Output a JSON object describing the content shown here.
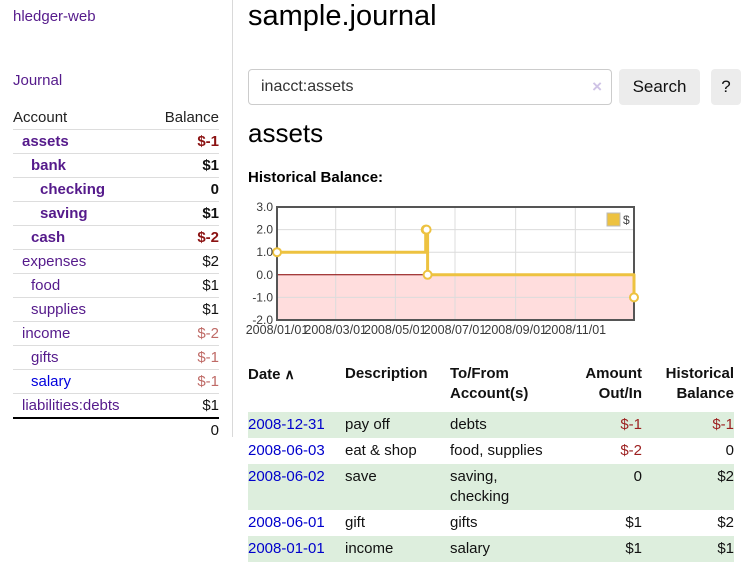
{
  "brand": {
    "label": "hledger-web"
  },
  "nav": {
    "journal_label": "Journal"
  },
  "sidebar": {
    "accounts": {
      "headers": {
        "account": "Account",
        "balance": "Balance"
      },
      "rows": [
        {
          "label": "assets",
          "indent": 1,
          "bold": true,
          "balance": "$-1"
        },
        {
          "label": "bank",
          "indent": 2,
          "bold": true,
          "balance": "$1"
        },
        {
          "label": "checking",
          "indent": 3,
          "bold": true,
          "balance": "0"
        },
        {
          "label": "saving",
          "indent": 3,
          "bold": true,
          "balance": "$1"
        },
        {
          "label": "cash",
          "indent": 2,
          "bold": true,
          "balance": "$-2"
        },
        {
          "label": "expenses",
          "indent": 1,
          "bold": false,
          "balance": "$2"
        },
        {
          "label": "food",
          "indent": 2,
          "bold": false,
          "balance": "$1"
        },
        {
          "label": "supplies",
          "indent": 2,
          "bold": false,
          "balance": "$1"
        },
        {
          "label": "income",
          "indent": 1,
          "bold": false,
          "balance": "$-2"
        },
        {
          "label": "gifts",
          "indent": 2,
          "bold": false,
          "balance": "$-1"
        },
        {
          "label": "salary",
          "indent": 2,
          "bold": false,
          "balance": "$-1",
          "link_style": "blue"
        },
        {
          "label": "liabilities:debts",
          "indent": 1,
          "bold": false,
          "balance": "$1"
        }
      ],
      "total": "0"
    }
  },
  "header": {
    "title": "sample.journal"
  },
  "search": {
    "value": "inacct:assets",
    "clear_icon": "×",
    "search_label": "Search",
    "help_label": "?"
  },
  "page": {
    "account_title": "assets",
    "chart_heading": "Historical Balance:"
  },
  "chart_data": {
    "type": "line",
    "title": "Historical Balance",
    "x_start": "2008-01-01",
    "x_end": "2008-12-31",
    "ylim": [
      -2,
      3
    ],
    "y_ticks": [
      "3.0",
      "2.0",
      "1.0",
      "0.0",
      "-1.0",
      "-2.0"
    ],
    "x_ticks": [
      "2008/01/01",
      "2008/03/01",
      "2008/05/01",
      "2008/07/01",
      "2008/09/01",
      "2008/11/01"
    ],
    "series": [
      {
        "name": "$",
        "color": "#edc240",
        "steps": true,
        "points": [
          [
            "2008-01-01",
            1
          ],
          [
            "2008-06-01",
            2
          ],
          [
            "2008-06-02",
            2
          ],
          [
            "2008-06-03",
            0
          ],
          [
            "2008-12-31",
            -1
          ]
        ]
      }
    ],
    "negative_region_color": "#ffdddd",
    "zero_line_color": "#8b0000",
    "grid": true,
    "legend_position": "top-right"
  },
  "register": {
    "headers": [
      "Date",
      "Description",
      "To/From Account(s)",
      "Amount Out/In",
      "Historical Balance"
    ],
    "sort_indicator": "∧",
    "rows": [
      {
        "date": "2008-12-31",
        "description": "pay off",
        "accounts": "debts",
        "amount": "$-1",
        "balance": "$-1"
      },
      {
        "date": "2008-06-03",
        "description": "eat & shop",
        "accounts": "food, supplies",
        "amount": "$-2",
        "balance": "0"
      },
      {
        "date": "2008-06-02",
        "description": "save",
        "accounts": "saving, checking",
        "amount": "0",
        "balance": "$2"
      },
      {
        "date": "2008-06-01",
        "description": "gift",
        "accounts": "gifts",
        "amount": "$1",
        "balance": "$2"
      },
      {
        "date": "2008-01-01",
        "description": "income",
        "accounts": "salary",
        "amount": "$1",
        "balance": "$1"
      }
    ]
  }
}
